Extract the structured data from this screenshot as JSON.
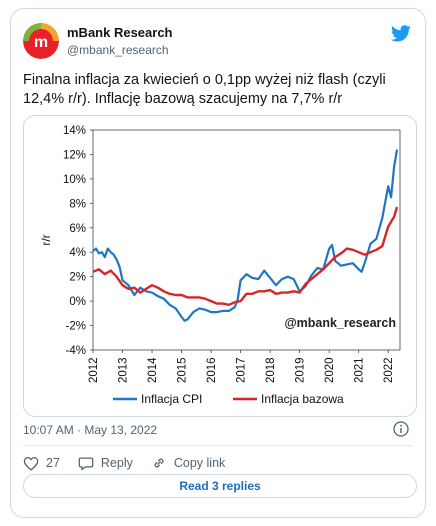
{
  "author": {
    "name": "mBank Research",
    "handle": "@mbank_research"
  },
  "tweet": {
    "text": "Finalna inflacja za kwiecień o 0,1pp wyżej niż flash (czyli 12,4% r/r). Inflację bazową szacujemy na 7,7% r/r",
    "timestamp": "10:07 AM · May 13, 2022"
  },
  "actions": {
    "likes": "27",
    "reply_label": "Reply",
    "copy_label": "Copy link",
    "read_replies": "Read 3 replies"
  },
  "icons": {
    "brand": "twitter-bird-icon",
    "like": "heart-icon",
    "reply": "comment-icon",
    "copy": "link-icon",
    "info": "info-icon"
  },
  "colors": {
    "cpi": "#1f77c4",
    "core": "#d62728",
    "twitter": "#1d9bf0",
    "link": "#1d6fb8"
  },
  "chart_data": {
    "type": "line",
    "ylabel": "r/r",
    "watermark": "@mbank_research",
    "ylim": [
      -4,
      14
    ],
    "xlim": [
      2012,
      2022.4
    ],
    "y_ticks": [
      -4,
      -2,
      0,
      2,
      4,
      6,
      8,
      10,
      12,
      14
    ],
    "y_tick_labels": [
      "-4%",
      "-2%",
      "0%",
      "2%",
      "4%",
      "6%",
      "8%",
      "10%",
      "12%",
      "14%"
    ],
    "x_tick_labels": [
      "2012",
      "2013",
      "2014",
      "2015",
      "2016",
      "2017",
      "2018",
      "2019",
      "2020",
      "2021",
      "2022"
    ],
    "grid": false,
    "legend": "bottom",
    "series": [
      {
        "name": "Inflacja CPI",
        "x": [
          2012.0,
          2012.1,
          2012.2,
          2012.3,
          2012.4,
          2012.5,
          2012.6,
          2012.7,
          2012.8,
          2012.9,
          2013.0,
          2013.2,
          2013.4,
          2013.6,
          2013.8,
          2014.0,
          2014.2,
          2014.4,
          2014.6,
          2014.8,
          2015.0,
          2015.1,
          2015.2,
          2015.4,
          2015.6,
          2015.8,
          2016.0,
          2016.2,
          2016.4,
          2016.6,
          2016.8,
          2016.9,
          2017.0,
          2017.2,
          2017.4,
          2017.6,
          2017.8,
          2018.0,
          2018.2,
          2018.4,
          2018.6,
          2018.8,
          2019.0,
          2019.2,
          2019.4,
          2019.6,
          2019.8,
          2020.0,
          2020.1,
          2020.2,
          2020.4,
          2020.6,
          2020.8,
          2021.0,
          2021.1,
          2021.2,
          2021.4,
          2021.6,
          2021.8,
          2022.0,
          2022.1,
          2022.2,
          2022.3
        ],
        "values": [
          4.1,
          4.3,
          3.9,
          4.0,
          3.6,
          4.3,
          4.0,
          3.8,
          3.4,
          2.8,
          1.7,
          1.3,
          0.5,
          1.1,
          0.8,
          0.7,
          0.4,
          0.2,
          -0.3,
          -0.6,
          -1.3,
          -1.6,
          -1.5,
          -0.9,
          -0.6,
          -0.7,
          -0.9,
          -0.9,
          -0.8,
          -0.8,
          -0.5,
          0.1,
          1.7,
          2.2,
          1.9,
          1.8,
          2.5,
          1.9,
          1.3,
          1.8,
          2.0,
          1.8,
          0.8,
          1.2,
          2.1,
          2.7,
          2.6,
          4.3,
          4.6,
          3.3,
          2.9,
          3.0,
          3.1,
          2.6,
          2.4,
          3.1,
          4.7,
          5.1,
          6.8,
          9.4,
          8.5,
          11.0,
          12.4
        ]
      },
      {
        "name": "Inflacja bazowa",
        "x": [
          2012.0,
          2012.2,
          2012.4,
          2012.6,
          2012.8,
          2013.0,
          2013.2,
          2013.4,
          2013.6,
          2013.8,
          2014.0,
          2014.2,
          2014.4,
          2014.6,
          2014.8,
          2015.0,
          2015.2,
          2015.4,
          2015.6,
          2015.8,
          2016.0,
          2016.2,
          2016.4,
          2016.6,
          2016.8,
          2017.0,
          2017.2,
          2017.4,
          2017.6,
          2017.8,
          2018.0,
          2018.2,
          2018.4,
          2018.6,
          2018.8,
          2019.0,
          2019.2,
          2019.4,
          2019.6,
          2019.8,
          2020.0,
          2020.2,
          2020.4,
          2020.6,
          2020.8,
          2021.0,
          2021.2,
          2021.4,
          2021.6,
          2021.8,
          2022.0,
          2022.2,
          2022.3
        ],
        "values": [
          2.4,
          2.6,
          2.2,
          2.5,
          2.0,
          1.3,
          1.0,
          1.1,
          0.7,
          1.0,
          1.3,
          1.1,
          0.8,
          0.6,
          0.5,
          0.5,
          0.3,
          0.3,
          0.3,
          0.2,
          0.0,
          -0.2,
          -0.2,
          -0.3,
          -0.1,
          0.0,
          0.6,
          0.6,
          0.8,
          0.8,
          0.9,
          0.6,
          0.7,
          0.7,
          0.8,
          0.7,
          1.4,
          1.8,
          2.2,
          2.6,
          3.1,
          3.6,
          3.9,
          4.3,
          4.2,
          4.0,
          3.8,
          4.0,
          4.2,
          4.5,
          6.1,
          6.9,
          7.7
        ]
      }
    ]
  }
}
